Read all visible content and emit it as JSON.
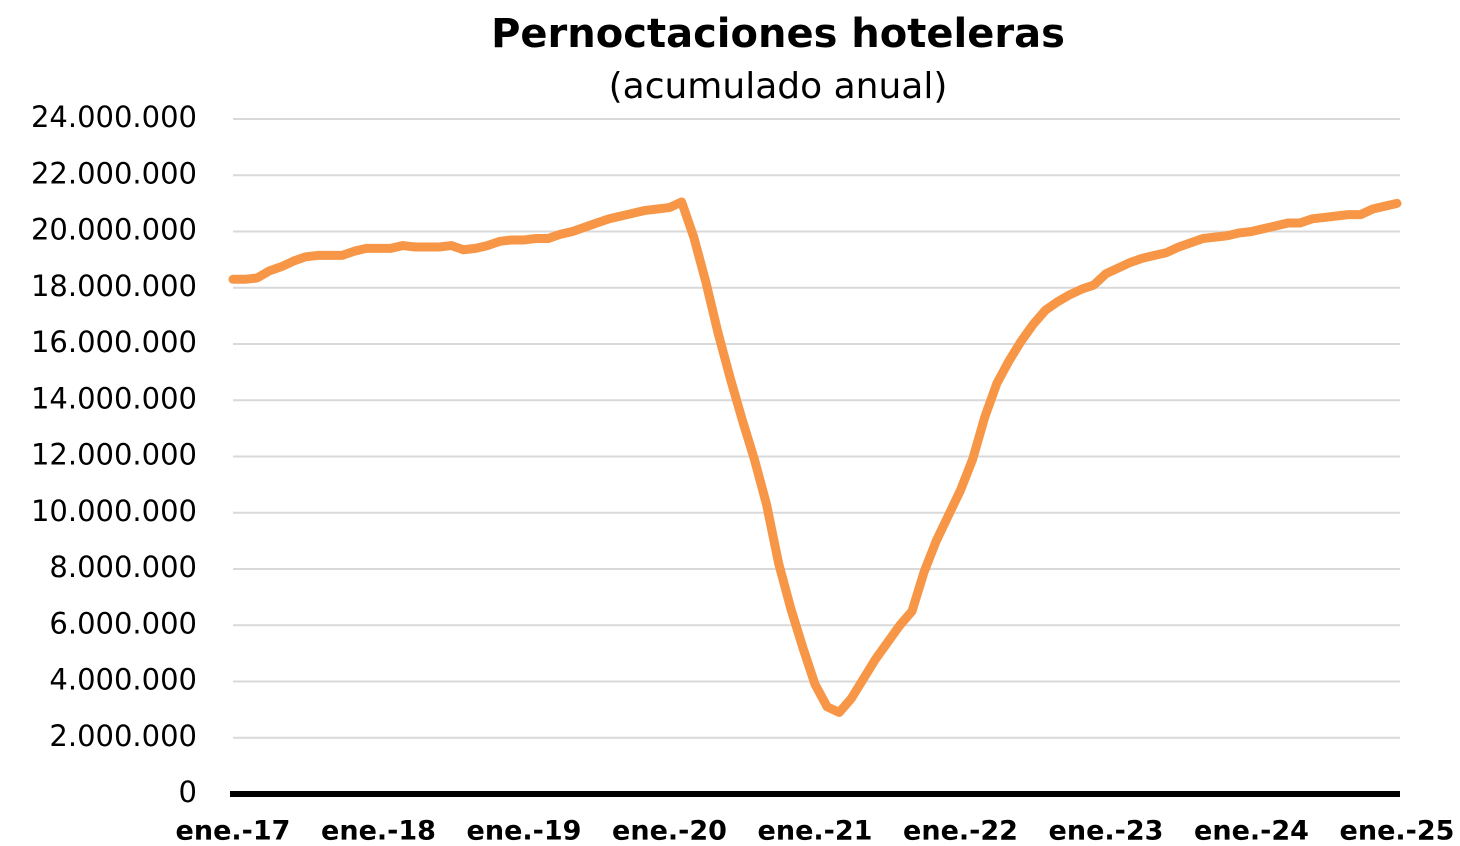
{
  "chart_data": {
    "type": "line",
    "title": "Pernoctaciones hoteleras",
    "subtitle": "(acumulado anual)",
    "categories": [
      "ene.-17",
      null,
      null,
      null,
      null,
      null,
      null,
      null,
      null,
      null,
      null,
      null,
      "ene.-18",
      null,
      null,
      null,
      null,
      null,
      null,
      null,
      null,
      null,
      null,
      null,
      "ene.-19",
      null,
      null,
      null,
      null,
      null,
      null,
      null,
      null,
      null,
      null,
      null,
      "ene.-20",
      null,
      null,
      null,
      null,
      null,
      null,
      null,
      null,
      null,
      null,
      null,
      "ene.-21",
      null,
      null,
      null,
      null,
      null,
      null,
      null,
      null,
      null,
      null,
      null,
      "ene.-22",
      null,
      null,
      null,
      null,
      null,
      null,
      null,
      null,
      null,
      null,
      null,
      "ene.-23",
      null,
      null,
      null,
      null,
      null,
      null,
      null,
      null,
      null,
      null,
      null,
      "ene.-24",
      null,
      null,
      null,
      null,
      null,
      null,
      null,
      null,
      null,
      null,
      null,
      "ene.-25"
    ],
    "series": [
      {
        "color": "#f79646",
        "values": [
          18300000,
          18300000,
          18350000,
          18600000,
          18750000,
          18950000,
          19100000,
          19150000,
          19150000,
          19150000,
          19300000,
          19400000,
          19400000,
          19400000,
          19500000,
          19450000,
          19450000,
          19450000,
          19500000,
          19350000,
          19400000,
          19500000,
          19650000,
          19700000,
          19700000,
          19750000,
          19750000,
          19900000,
          20000000,
          20150000,
          20300000,
          20450000,
          20550000,
          20650000,
          20750000,
          20800000,
          20850000,
          21050000,
          19800000,
          18200000,
          16400000,
          14800000,
          13300000,
          11900000,
          10300000,
          8200000,
          6600000,
          5200000,
          3900000,
          3100000,
          2900000,
          3400000,
          4100000,
          4800000,
          5400000,
          6000000,
          6500000,
          7900000,
          9000000,
          9900000,
          10800000,
          11900000,
          13400000,
          14600000,
          15400000,
          16100000,
          16700000,
          17200000,
          17500000,
          17750000,
          17950000,
          18100000,
          18500000,
          18700000,
          18900000,
          19050000,
          19150000,
          19250000,
          19450000,
          19600000,
          19750000,
          19800000,
          19850000,
          19950000,
          20000000,
          20100000,
          20200000,
          20300000,
          20300000,
          20450000,
          20500000,
          20550000,
          20600000,
          20600000,
          20800000,
          20900000,
          21000000
        ]
      }
    ],
    "ylim": [
      0,
      24000000
    ],
    "yticks": [
      0,
      {
        "value": 2000000,
        "label": "2.000.000"
      },
      {
        "value": 4000000,
        "label": "4.000.000"
      },
      {
        "value": 6000000,
        "label": "6.000.000"
      },
      {
        "value": 8000000,
        "label": "8.000.000"
      },
      {
        "value": 10000000,
        "label": "10.000.000"
      },
      {
        "value": 12000000,
        "label": "12.000.000"
      },
      {
        "value": 14000000,
        "label": "14.000.000"
      },
      {
        "value": 16000000,
        "label": "16.000.000"
      },
      {
        "value": 18000000,
        "label": "18.000.000"
      },
      {
        "value": 20000000,
        "label": "20.000.000"
      },
      {
        "value": 22000000,
        "label": "22.000.000"
      },
      {
        "value": 24000000,
        "label": "24.000.000"
      }
    ],
    "grid": true
  }
}
